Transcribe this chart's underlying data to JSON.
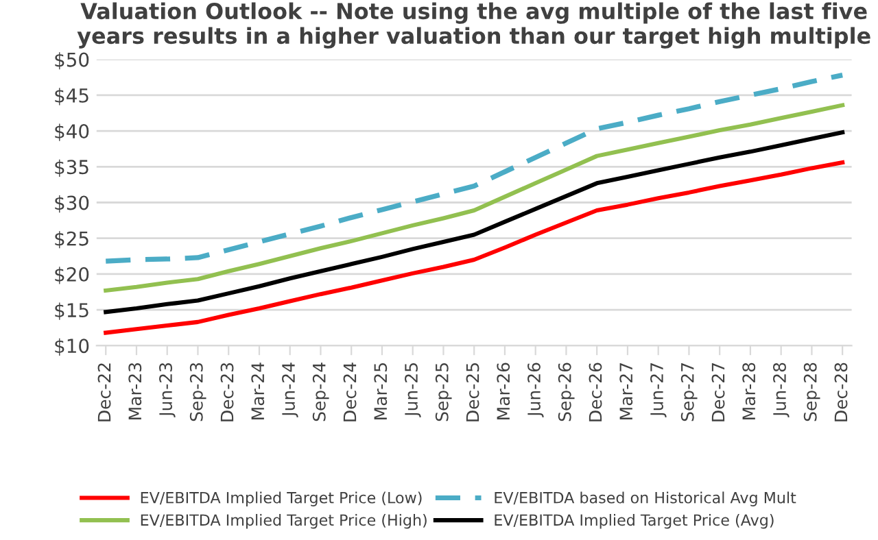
{
  "chart_data": {
    "type": "line",
    "title": "Valuation Outlook -- Note using the avg multiple of the last five years results in a higher valuation than our target high multiple",
    "categories": [
      "Dec-22",
      "Mar-23",
      "Jun-23",
      "Sep-23",
      "Dec-23",
      "Mar-24",
      "Jun-24",
      "Sep-24",
      "Dec-24",
      "Mar-25",
      "Jun-25",
      "Sep-25",
      "Dec-25",
      "Mar-26",
      "Jun-26",
      "Sep-26",
      "Dec-26",
      "Mar-27",
      "Jun-27",
      "Sep-27",
      "Dec-27",
      "Mar-28",
      "Jun-28",
      "Sep-28",
      "Dec-28"
    ],
    "series": [
      {
        "name": "EV/EBITDA Implied Target Price (Low)",
        "color": "#ff0000",
        "line_style": "solid",
        "values": [
          11.8,
          12.3,
          12.8,
          13.3,
          14.3,
          15.2,
          16.2,
          17.2,
          18.1,
          19.1,
          20.1,
          21.0,
          22.0,
          23.7,
          25.5,
          27.2,
          28.9,
          29.7,
          30.6,
          31.4,
          32.3,
          33.1,
          33.9,
          34.8,
          35.6
        ]
      },
      {
        "name": "EV/EBITDA Implied Target Price (High)",
        "color": "#92c050",
        "line_style": "solid",
        "values": [
          17.7,
          18.2,
          18.8,
          19.3,
          20.4,
          21.4,
          22.5,
          23.6,
          24.6,
          25.7,
          26.8,
          27.8,
          28.9,
          30.8,
          32.7,
          34.6,
          36.5,
          37.4,
          38.3,
          39.2,
          40.1,
          40.9,
          41.8,
          42.7,
          43.6
        ]
      },
      {
        "name": "EV/EBITDA based on Historical Avg Mult",
        "color": "#4bacc6",
        "line_style": "dashed",
        "values": [
          21.8,
          22.0,
          22.1,
          22.3,
          23.4,
          24.5,
          25.6,
          26.7,
          27.9,
          29.0,
          30.1,
          31.2,
          32.3,
          34.3,
          36.3,
          38.3,
          40.3,
          41.2,
          42.2,
          43.1,
          44.1,
          45.0,
          45.9,
          46.9,
          47.8
        ]
      },
      {
        "name": "EV/EBITDA Implied Target Price (Avg)",
        "color": "#000000",
        "line_style": "solid",
        "values": [
          14.7,
          15.2,
          15.8,
          16.3,
          17.3,
          18.3,
          19.4,
          20.4,
          21.4,
          22.4,
          23.5,
          24.5,
          25.5,
          27.3,
          29.1,
          30.9,
          32.7,
          33.6,
          34.5,
          35.4,
          36.3,
          37.1,
          38.0,
          38.9,
          39.8
        ]
      }
    ],
    "ylim": [
      10,
      50
    ],
    "yticks": [
      {
        "value": 10,
        "label": "$10"
      },
      {
        "value": 15,
        "label": "$15"
      },
      {
        "value": 20,
        "label": "$20"
      },
      {
        "value": 25,
        "label": "$25"
      },
      {
        "value": 30,
        "label": "$30"
      },
      {
        "value": 35,
        "label": "$35"
      },
      {
        "value": 40,
        "label": "$40"
      },
      {
        "value": 45,
        "label": "$45"
      },
      {
        "value": 50,
        "label": "$50"
      }
    ],
    "grid": "y",
    "legend": "bottom",
    "marker": "none"
  }
}
